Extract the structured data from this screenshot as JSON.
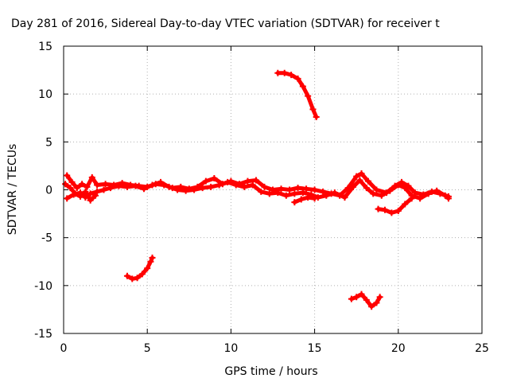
{
  "chart_data": {
    "type": "scatter",
    "title": "Day 281 of 2016, Sidereal Day-to-day VTEC variation (SDTVAR) for receiver t",
    "xlabel": "GPS time / hours",
    "ylabel": "SDTVAR / TECUs",
    "xlim": [
      0,
      25
    ],
    "ylim": [
      -15,
      15
    ],
    "x_ticks": [
      0,
      5,
      10,
      15,
      20,
      25
    ],
    "y_ticks": [
      -15,
      -10,
      -5,
      0,
      5,
      10,
      15
    ],
    "grid": true,
    "legend": "none",
    "series_color": "#ff0000",
    "series": [
      {
        "name": "main-band-a",
        "points": [
          [
            0.2,
            1.5
          ],
          [
            0.5,
            0.8
          ],
          [
            0.8,
            0.2
          ],
          [
            1.1,
            0.6
          ],
          [
            1.4,
            0.3
          ],
          [
            1.7,
            1.3
          ],
          [
            2.0,
            0.5
          ],
          [
            2.5,
            0.6
          ],
          [
            3.0,
            0.5
          ],
          [
            3.5,
            0.7
          ],
          [
            4.0,
            0.5
          ],
          [
            4.5,
            0.4
          ],
          [
            5.0,
            0.3
          ],
          [
            5.5,
            0.6
          ],
          [
            6.0,
            0.5
          ],
          [
            6.5,
            0.2
          ],
          [
            7.0,
            0.3
          ],
          [
            7.5,
            0.1
          ],
          [
            8.0,
            0.3
          ],
          [
            8.5,
            0.9
          ],
          [
            9.0,
            1.2
          ],
          [
            9.5,
            0.6
          ],
          [
            10.0,
            0.9
          ],
          [
            10.5,
            0.6
          ],
          [
            11.0,
            0.9
          ],
          [
            11.5,
            1.0
          ],
          [
            12.0,
            0.3
          ],
          [
            12.5,
            0.0
          ],
          [
            13.0,
            0.1
          ],
          [
            13.5,
            0.0
          ],
          [
            14.0,
            0.2
          ],
          [
            14.5,
            0.1
          ],
          [
            15.0,
            0.0
          ],
          [
            15.5,
            -0.2
          ],
          [
            16.0,
            -0.4
          ],
          [
            16.5,
            -0.6
          ],
          [
            17.0,
            0.2
          ],
          [
            17.5,
            1.4
          ],
          [
            17.8,
            1.7
          ],
          [
            18.2,
            0.9
          ],
          [
            18.7,
            0.0
          ],
          [
            19.3,
            -0.3
          ],
          [
            19.8,
            0.4
          ],
          [
            20.2,
            0.8
          ],
          [
            20.6,
            0.4
          ],
          [
            21.0,
            -0.3
          ],
          [
            21.5,
            -0.5
          ],
          [
            22.0,
            -0.2
          ],
          [
            22.5,
            -0.4
          ],
          [
            23.0,
            -0.7
          ]
        ]
      },
      {
        "name": "main-band-b",
        "points": [
          [
            0.2,
            -0.9
          ],
          [
            0.6,
            -0.5
          ],
          [
            1.0,
            -0.3
          ],
          [
            1.3,
            -0.8
          ],
          [
            1.6,
            -0.4
          ],
          [
            2.0,
            -0.2
          ],
          [
            2.4,
            0.0
          ],
          [
            2.8,
            0.2
          ],
          [
            3.3,
            0.4
          ],
          [
            3.8,
            0.3
          ],
          [
            4.3,
            0.4
          ],
          [
            4.8,
            0.1
          ],
          [
            5.3,
            0.5
          ],
          [
            5.8,
            0.8
          ],
          [
            6.3,
            0.3
          ],
          [
            6.8,
            0.0
          ],
          [
            7.3,
            -0.1
          ],
          [
            7.8,
            0.0
          ],
          [
            8.3,
            0.2
          ],
          [
            8.8,
            0.3
          ],
          [
            9.3,
            0.5
          ],
          [
            9.8,
            0.8
          ],
          [
            10.3,
            0.5
          ],
          [
            10.8,
            0.3
          ],
          [
            11.3,
            0.5
          ],
          [
            11.8,
            -0.2
          ],
          [
            12.3,
            -0.4
          ],
          [
            12.8,
            -0.3
          ],
          [
            13.3,
            -0.6
          ],
          [
            13.8,
            -0.4
          ],
          [
            14.3,
            -0.3
          ],
          [
            14.8,
            -0.5
          ],
          [
            15.2,
            -0.8
          ],
          [
            15.7,
            -0.6
          ],
          [
            16.2,
            -0.3
          ],
          [
            16.8,
            -0.8
          ],
          [
            17.3,
            0.3
          ],
          [
            17.7,
            1.0
          ],
          [
            18.1,
            0.2
          ],
          [
            18.5,
            -0.4
          ],
          [
            19.0,
            -0.6
          ],
          [
            19.5,
            -0.1
          ],
          [
            20.0,
            0.5
          ],
          [
            20.4,
            0.2
          ],
          [
            20.8,
            -0.6
          ],
          [
            21.3,
            -0.9
          ],
          [
            21.8,
            -0.4
          ],
          [
            22.3,
            -0.1
          ],
          [
            22.8,
            -0.6
          ],
          [
            23.0,
            -0.9
          ]
        ]
      },
      {
        "name": "segment-0-2h",
        "points": [
          [
            0.1,
            0.6
          ],
          [
            0.4,
            0.2
          ],
          [
            0.7,
            -0.4
          ],
          [
            1.0,
            -0.7
          ],
          [
            1.3,
            -0.2
          ],
          [
            1.6,
            -1.1
          ],
          [
            1.9,
            -0.6
          ]
        ]
      },
      {
        "name": "segment-14h-neg",
        "points": [
          [
            13.8,
            -1.3
          ],
          [
            14.2,
            -1.0
          ],
          [
            14.6,
            -0.8
          ],
          [
            15.0,
            -0.9
          ]
        ]
      },
      {
        "name": "segment-19-21h",
        "points": [
          [
            18.8,
            -2.0
          ],
          [
            19.2,
            -2.1
          ],
          [
            19.6,
            -2.4
          ],
          [
            20.0,
            -2.2
          ],
          [
            20.4,
            -1.5
          ],
          [
            20.8,
            -0.9
          ]
        ]
      },
      {
        "name": "arc-13-15h",
        "points": [
          [
            12.8,
            12.2
          ],
          [
            13.2,
            12.2
          ],
          [
            13.6,
            12.0
          ],
          [
            14.0,
            11.6
          ],
          [
            14.3,
            10.8
          ],
          [
            14.6,
            9.8
          ],
          [
            14.9,
            8.4
          ],
          [
            15.1,
            7.6
          ]
        ]
      },
      {
        "name": "arc-4-5h",
        "points": [
          [
            3.8,
            -9.0
          ],
          [
            4.1,
            -9.3
          ],
          [
            4.4,
            -9.2
          ],
          [
            4.7,
            -8.8
          ],
          [
            5.0,
            -8.2
          ],
          [
            5.2,
            -7.5
          ],
          [
            5.3,
            -7.1
          ]
        ]
      },
      {
        "name": "arc-17-19h",
        "points": [
          [
            17.2,
            -11.4
          ],
          [
            17.5,
            -11.2
          ],
          [
            17.8,
            -10.9
          ],
          [
            18.1,
            -11.5
          ],
          [
            18.4,
            -12.2
          ],
          [
            18.7,
            -11.8
          ],
          [
            18.9,
            -11.2
          ]
        ]
      }
    ]
  }
}
